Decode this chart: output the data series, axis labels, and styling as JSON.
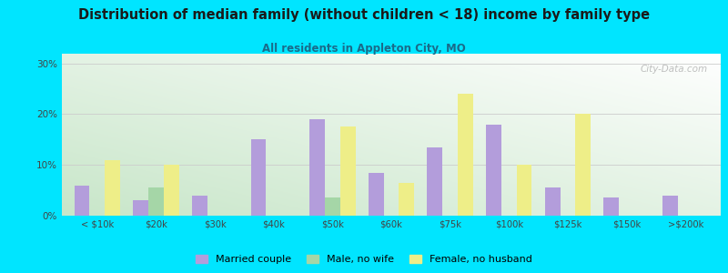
{
  "title": "Distribution of median family (without children < 18) income by family type",
  "subtitle": "All residents in Appleton City, MO",
  "categories": [
    "< $10k",
    "$20k",
    "$30k",
    "$40k",
    "$50k",
    "$60k",
    "$75k",
    "$100k",
    "$125k",
    "$150k",
    ">$200k"
  ],
  "married_couple": [
    6,
    3,
    4,
    15,
    19,
    8.5,
    13.5,
    18,
    5.5,
    3.5,
    4
  ],
  "male_no_wife": [
    0,
    5.5,
    0,
    0,
    3.5,
    0,
    0,
    0,
    0,
    0,
    0
  ],
  "female_no_husband": [
    11,
    10,
    0,
    0,
    17.5,
    6.5,
    24,
    10,
    20,
    0,
    0
  ],
  "colors": {
    "married_couple": "#b39ddb",
    "male_no_wife": "#a5d6a7",
    "female_no_husband": "#eeee88",
    "background_outer": "#00e5ff",
    "title_color": "#1a1a1a",
    "subtitle_color": "#1a6b8a",
    "axis_color": "#444444",
    "grid_color": "#cccccc"
  },
  "ylim": [
    0,
    32
  ],
  "yticks": [
    0,
    10,
    20,
    30
  ],
  "yticklabels": [
    "0%",
    "10%",
    "20%",
    "30%"
  ],
  "watermark": "City-Data.com",
  "legend": [
    "Married couple",
    "Male, no wife",
    "Female, no husband"
  ],
  "bar_width": 0.26
}
